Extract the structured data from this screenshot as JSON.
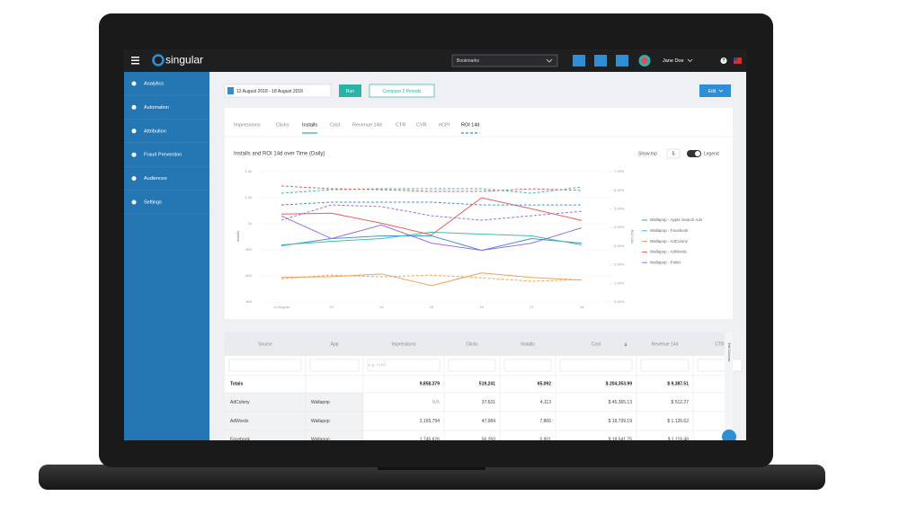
{
  "app": {
    "logo": "singular",
    "bookmarks": "Bookmarks",
    "user": "Jane Doe",
    "help": "?"
  },
  "sidebar": {
    "items": [
      "Analytics",
      "Automation",
      "Attribution",
      "Fraud Prevention",
      "Audiences",
      "Settings"
    ]
  },
  "toolbar": {
    "date_range": "12 August 2018 - 18 August 2018",
    "run": "Run",
    "compare": "Compare 2 Periods",
    "edit": "Edit"
  },
  "tabs": {
    "items": [
      "Impressions",
      "Clicks",
      "Installs",
      "Cost",
      "Revenue 14d",
      "CTR",
      "CVR",
      "eCPI",
      "ROI 14d"
    ],
    "active": 2,
    "secondary": 8
  },
  "chart_data": {
    "type": "line",
    "title": "Installs and ROI 14d over Time (Daily)",
    "show_top_label": "Show top",
    "show_top": 5,
    "legend_label": "Legend",
    "y_label": "Installs",
    "y2_label": "ROI 14d",
    "categories": [
      "12 August",
      "13",
      "14",
      "15",
      "16",
      "17",
      "18"
    ],
    "ylim": [
      400,
      1400
    ],
    "yticks": [
      {
        "value": 1400,
        "label": "1.4k"
      },
      {
        "value": 1200,
        "label": "1.2k"
      },
      {
        "value": 1000,
        "label": "1k"
      },
      800,
      600,
      400
    ],
    "y2lim": [
      0,
      7
    ],
    "y2ticks": [
      {
        "value": 7,
        "label": "7.00%"
      },
      {
        "value": 6,
        "label": "6.00%"
      },
      {
        "value": 5,
        "label": "5.00%"
      },
      {
        "value": 4,
        "label": "4.00%"
      },
      {
        "value": 3,
        "label": "3.00%"
      },
      {
        "value": 2,
        "label": "2.00%"
      },
      {
        "value": 1,
        "label": "1.00%"
      },
      {
        "value": 0,
        "label": "0.00%"
      }
    ],
    "grid": true,
    "series": [
      {
        "name": "Wallapop - Apple Search Ads",
        "color": "#4a90d9",
        "values": [
          831,
          886,
          907,
          907,
          796,
          886,
          851
        ],
        "y2_values": [
          5.21,
          5.36,
          5.36,
          5.36,
          5.21,
          5.21,
          5.21
        ]
      },
      {
        "name": "Wallapop - Facebook",
        "color": "#3dbfb0",
        "values": [
          838,
          865,
          886,
          935,
          921,
          907,
          838
        ],
        "y2_values": [
          5.84,
          6.03,
          6.08,
          6.08,
          6.08,
          5.84,
          6.18
        ]
      },
      {
        "name": "Wallapop - AdColony",
        "color": "#f5a05a",
        "values": [
          588,
          594,
          615,
          525,
          622,
          588,
          567
        ],
        "y2_values": [
          1.25,
          1.44,
          1.35,
          1.44,
          1.3,
          1.11,
          1.2
        ]
      },
      {
        "name": "Wallapop - AdWords",
        "color": "#e8605c",
        "values": [
          1074,
          1081,
          1004,
          914,
          1199,
          1115,
          1025
        ],
        "y2_values": [
          6.23,
          6.08,
          6.03,
          5.94,
          5.94,
          6.08,
          5.99
        ]
      },
      {
        "name": "Wallapop - Pokkt",
        "color": "#9b6fe0",
        "values": [
          1060,
          886,
          990,
          851,
          796,
          851,
          969
        ],
        "y2_values": [
          4.39,
          5.21,
          5.12,
          4.63,
          4.39,
          4.63,
          4.87
        ]
      }
    ]
  },
  "table": {
    "header": [
      "Source",
      "App",
      "Impressions",
      "Clicks",
      "Installs",
      "Cost",
      "Revenue 14d",
      "CTR"
    ],
    "filter_placeholder": "e.g. >100",
    "side_label": "Edit Columns",
    "totals": {
      "label": "Totals",
      "values": [
        "9,858,379",
        "519,241",
        "65,092",
        "$ 204,353.99",
        "$ 9,387.51"
      ]
    },
    "rows": [
      [
        "AdColony",
        "Wallapop",
        "N/A",
        "37,631",
        "4,113",
        "$ 45,365.13",
        "$ 512.27"
      ],
      [
        "AdWords",
        "Wallapop",
        "2,165,794",
        "47,084",
        "7,866",
        "$ 18,739.19",
        "$ 1,126.62"
      ],
      [
        "Facebook",
        "Wallapop",
        "1,745,626",
        "56,260",
        "5,901",
        "$ 18,541.75",
        "$ 1,118.48"
      ]
    ]
  }
}
